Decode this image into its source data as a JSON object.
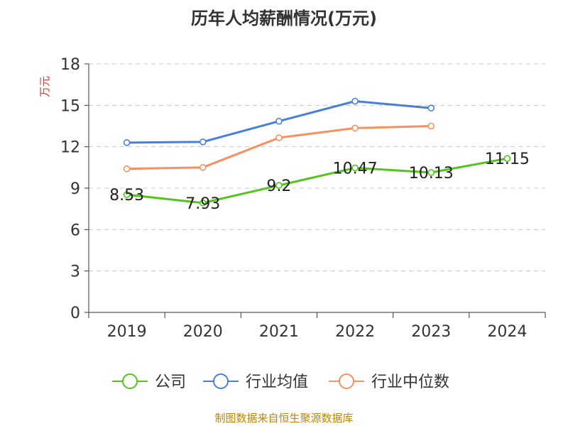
{
  "chart_data": {
    "type": "line",
    "title": "历年人均薪酬情况(万元)",
    "ylabel": "万元",
    "xlabel": "",
    "categories": [
      "2019",
      "2020",
      "2021",
      "2022",
      "2023",
      "2024"
    ],
    "ylim": [
      0,
      18
    ],
    "yticks": [
      "0",
      "3",
      "6",
      "9",
      "12",
      "15",
      "18"
    ],
    "grid": true,
    "legend_position": "bottom",
    "series": [
      {
        "name": "公司",
        "color": "#52c41a",
        "values": [
          8.53,
          7.93,
          9.2,
          10.47,
          10.13,
          11.15
        ],
        "labels": [
          "8.53",
          "7.93",
          "9.2",
          "10.47",
          "10.13",
          "11.15"
        ]
      },
      {
        "name": "行业均值",
        "color": "#4a7fd8",
        "values": [
          12.3,
          12.35,
          13.85,
          15.3,
          14.8,
          null
        ]
      },
      {
        "name": "行业中位数",
        "color": "#f4915e",
        "values": [
          10.4,
          10.5,
          12.65,
          13.35,
          13.5,
          null
        ]
      }
    ]
  },
  "footer": "制图数据来自恒生聚源数据库"
}
